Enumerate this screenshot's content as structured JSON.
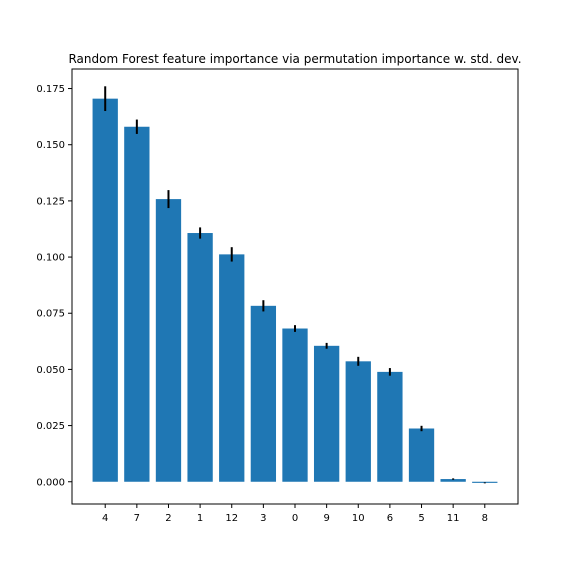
{
  "chart_data": {
    "type": "bar",
    "title": "Random Forest feature importance via permutation importance w. std. dev.",
    "xlabel": "",
    "ylabel": "",
    "categories": [
      "4",
      "7",
      "2",
      "1",
      "12",
      "3",
      "0",
      "9",
      "10",
      "6",
      "5",
      "11",
      "8"
    ],
    "values": [
      0.1705,
      0.158,
      0.1258,
      0.1107,
      0.1012,
      0.0783,
      0.0682,
      0.0605,
      0.0536,
      0.0489,
      0.0237,
      0.0012,
      -0.0005
    ],
    "std": [
      0.0055,
      0.0032,
      0.004,
      0.0025,
      0.0032,
      0.0025,
      0.0015,
      0.0013,
      0.002,
      0.0017,
      0.0012,
      0.0003,
      0.0002
    ],
    "ylim": [
      -0.0099,
      0.1837
    ],
    "yticks": [
      0.0,
      0.025,
      0.05,
      0.075,
      0.1,
      0.125,
      0.15,
      0.175
    ],
    "ytick_labels": [
      "0.000",
      "0.025",
      "0.050",
      "0.075",
      "0.100",
      "0.125",
      "0.150",
      "0.175"
    ],
    "grid": false,
    "bar_color": "#1f77b4",
    "error_color": "#000000"
  }
}
